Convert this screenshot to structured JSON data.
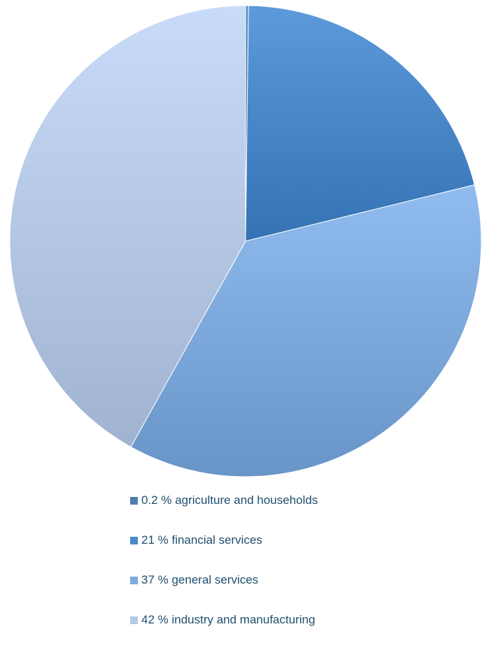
{
  "chart_data": {
    "type": "pie",
    "title": "",
    "legend_position": "bottom",
    "start_angle_deg": 0,
    "direction": "clockwise",
    "slices": [
      {
        "label": "0.2 % agriculture and households",
        "value": 0.2,
        "color": "#4f7fb0"
      },
      {
        "label": "21 % financial services",
        "value": 21,
        "color": "#4a88c9"
      },
      {
        "label": "37 % general services",
        "value": 37,
        "color": "#7eaadd"
      },
      {
        "label": "42 % industry and manufacturing",
        "value": 42,
        "color": "#b6c9e6"
      }
    ]
  }
}
